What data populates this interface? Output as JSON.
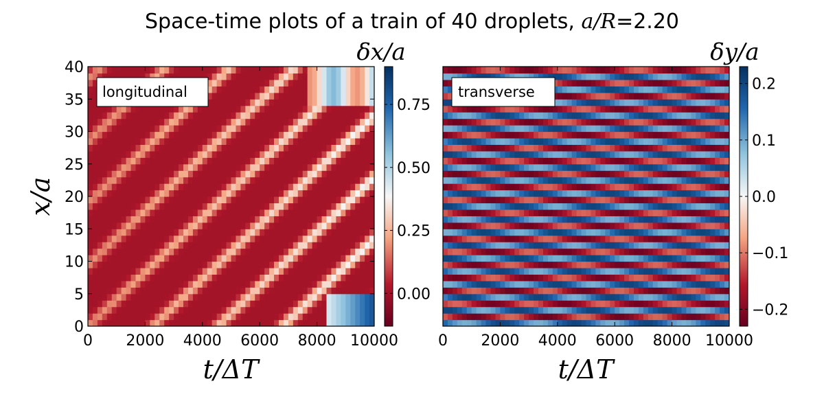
{
  "figure": {
    "title_text": "Space-time plots of a train of 40 droplets, ",
    "title_math": "a/R",
    "title_value": "=2.20"
  },
  "colors": {
    "dark_red": "#67001f",
    "mid_red": "#b2182b",
    "light_red": "#f4a582",
    "white": "#f7f7f7",
    "light_blue": "#92c5de",
    "mid_blue": "#2166ac",
    "dark_blue": "#053061"
  },
  "chart_data": [
    {
      "type": "heatmap",
      "panel_label": "longitudinal",
      "xlabel": "t/ΔT",
      "ylabel": "x/a",
      "colorbar_label": "δx/a",
      "xlim": [
        0,
        10000
      ],
      "ylim": [
        0,
        40
      ],
      "x_ticks": [
        "0",
        "2000",
        "4000",
        "6000",
        "8000",
        "10000"
      ],
      "y_ticks": [
        "0",
        "5",
        "10",
        "15",
        "20",
        "25",
        "30",
        "35",
        "40"
      ],
      "colorbar_range": [
        -0.13,
        0.9
      ],
      "colorbar_ticks": [
        "0.00",
        "0.25",
        "0.50",
        "0.75"
      ],
      "colorbar_tick_values": [
        0.0,
        0.25,
        0.5,
        0.75
      ],
      "colormap": "RdBu",
      "droplets": 40
    },
    {
      "type": "heatmap",
      "panel_label": "transverse",
      "xlabel": "t/ΔT",
      "ylabel": "",
      "colorbar_label": "δy/a",
      "xlim": [
        0,
        10000
      ],
      "ylim": [
        0,
        40
      ],
      "x_ticks": [
        "0",
        "2000",
        "4000",
        "6000",
        "8000",
        "10000"
      ],
      "y_ticks": [],
      "colorbar_range": [
        -0.23,
        0.23
      ],
      "colorbar_ticks": [
        "−0.2",
        "−0.1",
        "0.0",
        "0.1",
        "0.2"
      ],
      "colorbar_tick_values": [
        -0.2,
        -0.1,
        0.0,
        0.1,
        0.2
      ],
      "colormap": "RdBu",
      "droplets": 40
    }
  ]
}
